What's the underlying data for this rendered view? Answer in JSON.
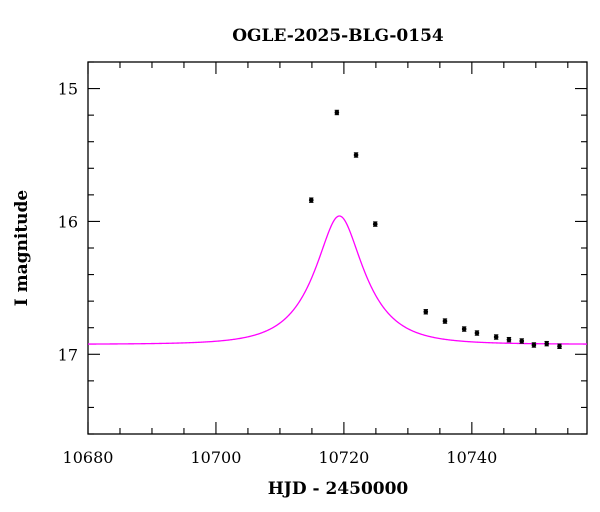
{
  "chart_data": {
    "type": "scatter",
    "title": "OGLE-2025-BLG-0154",
    "xlabel": "HJD - 2450000",
    "ylabel": "I magnitude",
    "xlim": [
      10680,
      10758
    ],
    "ylim": [
      17.6,
      14.8
    ],
    "y_inverted": true,
    "x_ticks": [
      10680,
      10700,
      10720,
      10740
    ],
    "y_ticks": [
      15,
      16,
      17
    ],
    "grid": false,
    "model": {
      "name": "",
      "color": "#ff00ff",
      "t0": 10719.3,
      "u0": 0.44,
      "tE": 7.0,
      "baseline": 16.925,
      "x_range": [
        10680,
        10758
      ]
    },
    "series": [
      {
        "name": "",
        "color": "#000000",
        "points": [
          {
            "x": 10714.9,
            "y": 15.84,
            "err": 0.01
          },
          {
            "x": 10718.9,
            "y": 15.18,
            "err": 0.01
          },
          {
            "x": 10721.9,
            "y": 15.5,
            "err": 0.01
          },
          {
            "x": 10724.9,
            "y": 16.02,
            "err": 0.01
          },
          {
            "x": 10732.8,
            "y": 16.68,
            "err": 0.01
          },
          {
            "x": 10735.8,
            "y": 16.75,
            "err": 0.01
          },
          {
            "x": 10738.8,
            "y": 16.81,
            "err": 0.01
          },
          {
            "x": 10740.8,
            "y": 16.84,
            "err": 0.01
          },
          {
            "x": 10743.8,
            "y": 16.87,
            "err": 0.01
          },
          {
            "x": 10745.8,
            "y": 16.89,
            "err": 0.01
          },
          {
            "x": 10747.8,
            "y": 16.9,
            "err": 0.01
          },
          {
            "x": 10749.7,
            "y": 16.93,
            "err": 0.015
          },
          {
            "x": 10751.7,
            "y": 16.92,
            "err": 0.015
          },
          {
            "x": 10753.7,
            "y": 16.94,
            "err": 0.015
          }
        ]
      }
    ]
  }
}
